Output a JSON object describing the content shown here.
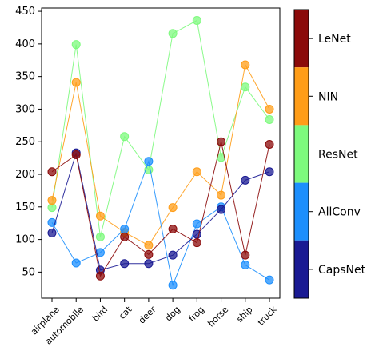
{
  "chart_data": {
    "type": "line",
    "categories": [
      "airplane",
      "automobile",
      "bird",
      "cat",
      "deer",
      "dog",
      "frog",
      "horse",
      "ship",
      "truck"
    ],
    "ylim": [
      10,
      455
    ],
    "yticks": [
      50,
      100,
      150,
      200,
      250,
      300,
      350,
      400,
      450
    ],
    "grid": false,
    "legend_placement": "right colorbar",
    "series": [
      {
        "name": "ResNet",
        "color": "#7dfa7d",
        "values": [
          149,
          399,
          104,
          258,
          207,
          416,
          436,
          226,
          334,
          284
        ]
      },
      {
        "name": "NIN",
        "color": "#ff9d18",
        "values": [
          160,
          341,
          136,
          111,
          91,
          149,
          204,
          168,
          368,
          300
        ]
      },
      {
        "name": "AllConv",
        "color": "#1c8ffd",
        "values": [
          126,
          64,
          80,
          116,
          220,
          30,
          124,
          150,
          61,
          38
        ]
      },
      {
        "name": "CapsNet",
        "color": "#1a1a93",
        "values": [
          110,
          233,
          53,
          63,
          63,
          76,
          108,
          146,
          191,
          204
        ]
      },
      {
        "name": "LeNet",
        "color": "#8b0a0a",
        "values": [
          204,
          230,
          44,
          104,
          77,
          116,
          95,
          250,
          76,
          246
        ]
      }
    ],
    "legend": [
      "LeNet",
      "NIN",
      "ResNet",
      "AllConv",
      "CapsNet"
    ]
  }
}
